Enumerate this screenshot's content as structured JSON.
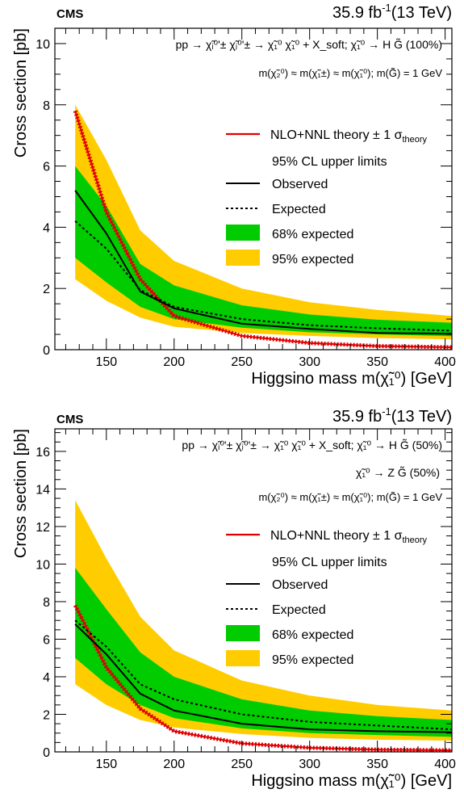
{
  "chart_data": [
    {
      "type": "line",
      "cms_label": "CMS",
      "lumi_text": "35.9 fb",
      "lumi_sup": "-1",
      "energy_text": "(13 TeV)",
      "process_line1": "pp → χ̃ᵢ⁰'± χ̃ⱼ⁰'± → χ̃₁⁰ χ̃₁⁰ + X_soft; χ̃₁⁰ → H G̃ (100%)",
      "process_line2": "",
      "mass_text": "m(χ̃₂⁰) ≈ m(χ̃₁±) ≈ m(χ̃₁⁰); m(G̃) = 1 GeV",
      "xlabel": "Higgsino mass m(χ̃₁⁰) [GeV]",
      "ylabel": "Cross section [pb]",
      "xlim": [
        112,
        405
      ],
      "ylim": [
        0,
        10.5
      ],
      "xticks": [
        "150",
        "200",
        "250",
        "300",
        "350",
        "400"
      ],
      "yticks": [
        "0",
        "2",
        "4",
        "6",
        "8",
        "10"
      ],
      "legend_theory": "NLO+NNL theory ± 1 σ",
      "legend_theory_sub": "theory",
      "legend_header": "95% CL upper limits",
      "legend_observed": "Observed",
      "legend_expected": "Expected",
      "legend_68": "68% expected",
      "legend_95": "95% expected",
      "x": [
        127,
        150,
        175,
        200,
        250,
        300,
        350,
        405
      ],
      "series": [
        {
          "name": "Observed",
          "values": [
            5.2,
            3.8,
            1.9,
            1.35,
            0.85,
            0.68,
            0.55,
            0.52
          ]
        },
        {
          "name": "Expected",
          "values": [
            4.2,
            3.3,
            1.95,
            1.4,
            1.0,
            0.8,
            0.7,
            0.62
          ]
        },
        {
          "name": "68% expected low",
          "values": [
            3.0,
            2.2,
            1.4,
            1.0,
            0.72,
            0.57,
            0.5,
            0.44
          ]
        },
        {
          "name": "68% expected high",
          "values": [
            6.0,
            4.7,
            2.8,
            2.1,
            1.45,
            1.15,
            0.98,
            0.88
          ]
        },
        {
          "name": "95% expected low",
          "values": [
            2.3,
            1.6,
            1.05,
            0.75,
            0.55,
            0.45,
            0.38,
            0.34
          ]
        },
        {
          "name": "95% expected high",
          "values": [
            8.0,
            6.2,
            3.9,
            2.9,
            2.0,
            1.55,
            1.3,
            1.1
          ]
        },
        {
          "name": "NLO+NNL theory",
          "values": [
            7.8,
            4.5,
            2.3,
            1.1,
            0.45,
            0.22,
            0.12,
            0.08
          ]
        }
      ]
    },
    {
      "type": "line",
      "cms_label": "CMS",
      "lumi_text": "35.9 fb",
      "lumi_sup": "-1",
      "energy_text": "(13 TeV)",
      "process_line1": "pp → χ̃ᵢ⁰'± χ̃ⱼ⁰'± → χ̃₁⁰ χ̃₁⁰ + X_soft; χ̃₁⁰ → H G̃ (50%)",
      "process_line2": "χ̃₁⁰ → Z G̃ (50%)",
      "mass_text": "m(χ̃₂⁰) ≈ m(χ̃₁±) ≈ m(χ̃₁⁰); m(G̃) = 1 GeV",
      "xlabel": "Higgsino mass m(χ̃₁⁰) [GeV]",
      "ylabel": "Cross section [pb]",
      "xlim": [
        112,
        405
      ],
      "ylim": [
        0,
        17.2
      ],
      "xticks": [
        "150",
        "200",
        "250",
        "300",
        "350",
        "400"
      ],
      "yticks": [
        "0",
        "2",
        "4",
        "6",
        "8",
        "10",
        "12",
        "14",
        "16"
      ],
      "legend_theory": "NLO+NNL theory ± 1 σ",
      "legend_theory_sub": "theory",
      "legend_header": "95% CL upper limits",
      "legend_observed": "Observed",
      "legend_expected": "Expected",
      "legend_68": "68% expected",
      "legend_95": "95% expected",
      "x": [
        127,
        150,
        175,
        200,
        250,
        300,
        350,
        405
      ],
      "series": [
        {
          "name": "Observed",
          "values": [
            6.8,
            5.2,
            3.1,
            2.2,
            1.5,
            1.2,
            1.1,
            1.05
          ]
        },
        {
          "name": "Expected",
          "values": [
            7.0,
            5.6,
            3.6,
            2.8,
            2.0,
            1.6,
            1.4,
            1.2
          ]
        },
        {
          "name": "68% expected low",
          "values": [
            5.0,
            3.6,
            2.5,
            1.8,
            1.25,
            1.0,
            0.9,
            0.8
          ]
        },
        {
          "name": "68% expected high",
          "values": [
            9.8,
            7.6,
            5.3,
            4.0,
            2.8,
            2.2,
            1.9,
            1.7
          ]
        },
        {
          "name": "95% expected low",
          "values": [
            3.6,
            2.5,
            1.7,
            1.3,
            0.95,
            0.75,
            0.65,
            0.6
          ]
        },
        {
          "name": "95% expected high",
          "values": [
            13.4,
            10.3,
            7.2,
            5.4,
            3.8,
            3.0,
            2.5,
            2.2
          ]
        },
        {
          "name": "NLO+NNL theory",
          "values": [
            7.8,
            4.5,
            2.3,
            1.1,
            0.45,
            0.22,
            0.12,
            0.08
          ]
        }
      ]
    }
  ]
}
